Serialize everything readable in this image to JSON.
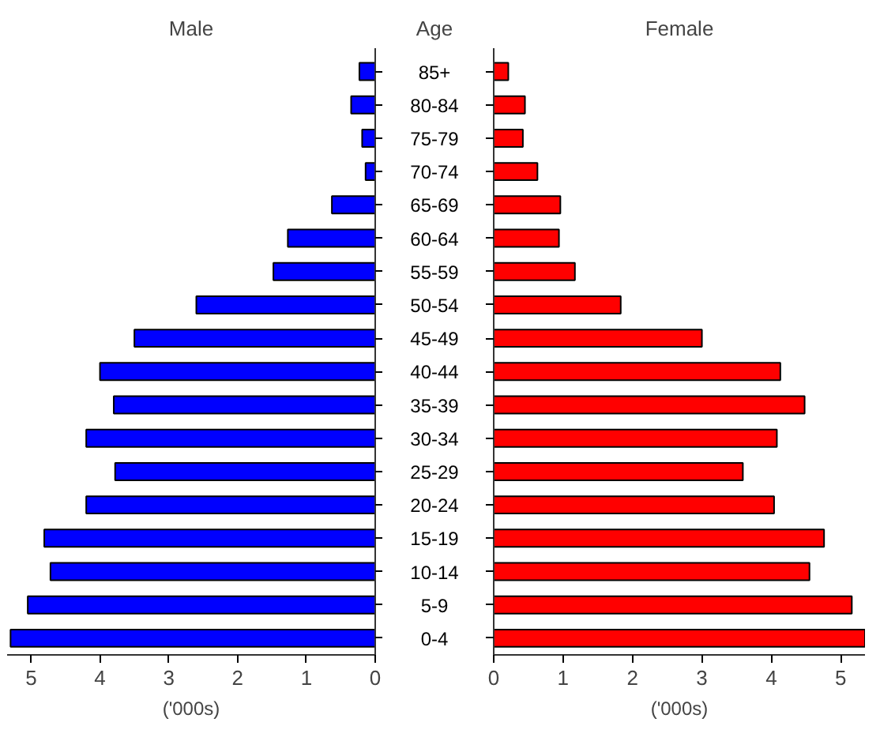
{
  "chart_data": [
    {
      "type": "bar",
      "orientation": "horizontal",
      "title": "Male",
      "ylabel": "Age",
      "xlabel": "('000s)",
      "categories": [
        "85+",
        "80-84",
        "75-79",
        "70-74",
        "65-69",
        "60-64",
        "55-59",
        "50-54",
        "45-49",
        "40-44",
        "35-39",
        "30-34",
        "25-29",
        "20-24",
        "15-19",
        "10-14",
        "5-9",
        "0-4"
      ],
      "series": [
        {
          "color": "#0000ff",
          "values": [
            0.23,
            0.35,
            0.19,
            0.14,
            0.63,
            1.27,
            1.48,
            2.6,
            3.5,
            4.0,
            3.8,
            4.2,
            3.78,
            4.2,
            4.81,
            4.72,
            5.05,
            5.3
          ]
        }
      ],
      "xlim": [
        5.35,
        0
      ],
      "xticks": [
        0,
        1,
        2,
        3,
        4,
        5
      ],
      "grid": false
    },
    {
      "type": "bar",
      "orientation": "horizontal",
      "title": "Female",
      "xlabel": "('000s)",
      "categories": [
        null,
        null,
        null,
        null,
        null,
        null,
        null,
        null,
        null,
        null,
        null,
        null,
        null,
        null,
        null,
        null,
        null,
        null
      ],
      "series": [
        {
          "color": "#ff0000",
          "values": [
            0.21,
            0.45,
            0.42,
            0.63,
            0.96,
            0.94,
            1.17,
            1.83,
            3.0,
            4.13,
            4.48,
            4.08,
            3.59,
            4.04,
            4.76,
            4.55,
            5.16,
            5.35
          ]
        }
      ],
      "xlim": [
        0,
        5.35
      ],
      "xticks": [
        0,
        1,
        2,
        3,
        4,
        5
      ],
      "tick_labels": "x",
      "grid": false
    }
  ]
}
